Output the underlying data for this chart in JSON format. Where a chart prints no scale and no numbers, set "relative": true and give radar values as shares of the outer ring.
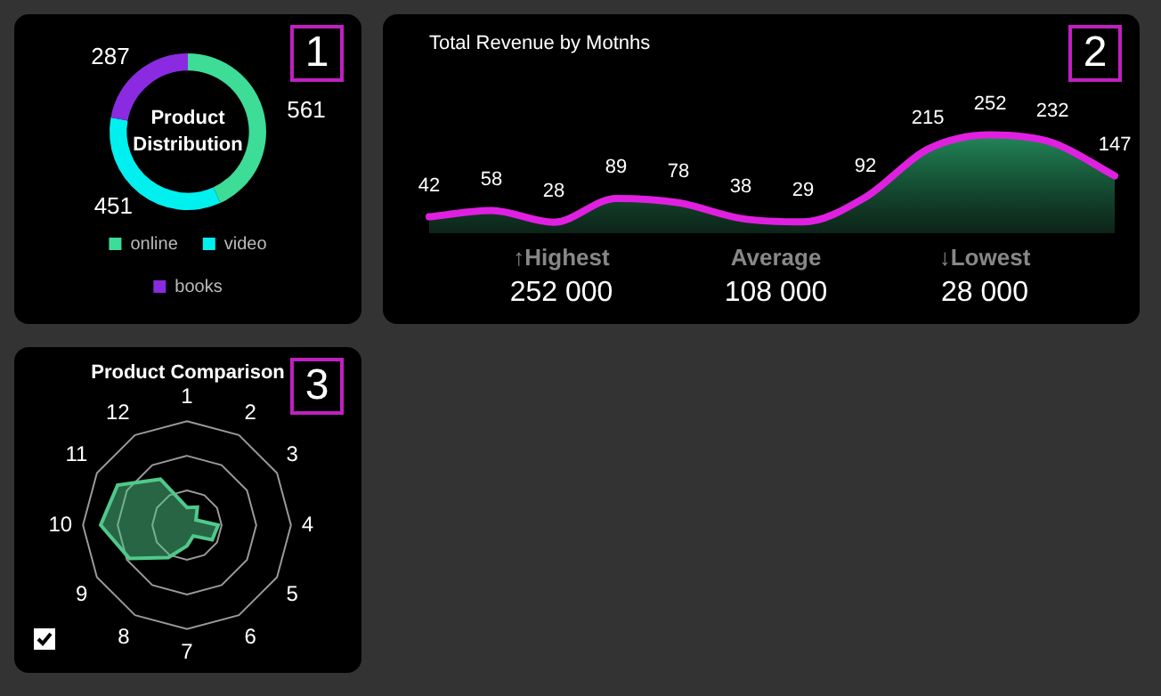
{
  "chart_data": [
    {
      "type": "donut",
      "title": "Product Distribution",
      "categories": [
        "online",
        "video",
        "books"
      ],
      "values": [
        561,
        451,
        287
      ],
      "colors": [
        "#3ddc97",
        "#00f0f0",
        "#8a2be2"
      ],
      "data_labels": true,
      "legend": "bottom",
      "annotations": [
        "1"
      ]
    },
    {
      "type": "area",
      "title": "Total Revenue by Motnhs",
      "categories": [
        null,
        null,
        null,
        null,
        null,
        null,
        null,
        null,
        null,
        null,
        null,
        null
      ],
      "series": [
        {
          "color": "#e020e0",
          "values": [
            42,
            58,
            28,
            89,
            78,
            38,
            29,
            92,
            215,
            252,
            232,
            147
          ]
        }
      ],
      "data_labels": true,
      "annotations": [
        "2",
        "↑Highest",
        "252 000",
        "Average",
        "108 000",
        "↓Lowest",
        "28 000"
      ]
    },
    {
      "type": "radar",
      "title": "Product Comparison",
      "categories": [
        "1",
        "2",
        "3",
        "4",
        "5",
        "6",
        "7",
        "8",
        "9",
        "10",
        "11",
        "12"
      ],
      "relative": true,
      "grid": true,
      "series": [
        {
          "color": "#4fc98a",
          "values": [
            0.17,
            0.2,
            0.1,
            0.3,
            0.28,
            0.12,
            0.2,
            0.36,
            0.64,
            0.83,
            0.77,
            0.51
          ]
        }
      ],
      "annotations": [
        "3"
      ]
    }
  ]
}
